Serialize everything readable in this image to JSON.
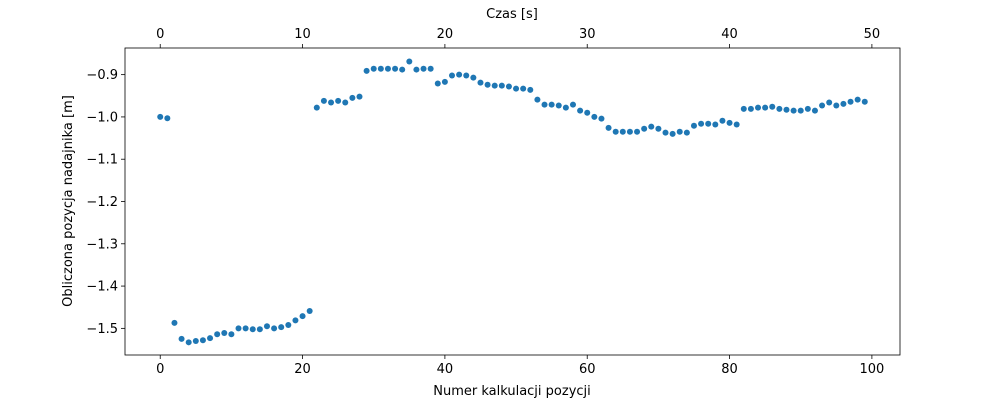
{
  "chart_data": {
    "type": "scatter",
    "xlabel": "Numer kalkulacji pozycji",
    "ylabel": "Obliczona pozycja nadajnika [m]",
    "x2label": "Czas [s]",
    "color": "#1f77b4",
    "x": [
      0,
      1,
      2,
      3,
      4,
      5,
      6,
      7,
      8,
      9,
      10,
      11,
      12,
      13,
      14,
      15,
      16,
      17,
      18,
      19,
      20,
      21,
      22,
      23,
      24,
      25,
      26,
      27,
      28,
      29,
      30,
      31,
      32,
      33,
      34,
      35,
      36,
      37,
      38,
      39,
      40,
      41,
      42,
      43,
      44,
      45,
      46,
      47,
      48,
      49,
      50,
      51,
      52,
      53,
      54,
      55,
      56,
      57,
      58,
      59,
      60,
      61,
      62,
      63,
      64,
      65,
      66,
      67,
      68,
      69,
      70,
      71,
      72,
      73,
      74,
      75,
      76,
      77,
      78,
      79,
      80,
      81,
      82,
      83,
      84,
      85,
      86,
      87,
      88,
      89,
      90,
      91,
      92,
      93,
      94,
      95,
      96,
      97,
      98,
      99
    ],
    "values": [
      -1.0,
      -1.003,
      -1.487,
      -1.525,
      -1.533,
      -1.53,
      -1.528,
      -1.523,
      -1.514,
      -1.511,
      -1.514,
      -1.5,
      -1.5,
      -1.502,
      -1.502,
      -1.495,
      -1.5,
      -1.497,
      -1.492,
      -1.481,
      -1.471,
      -1.459,
      -0.978,
      -0.962,
      -0.966,
      -0.962,
      -0.966,
      -0.955,
      -0.952,
      -0.891,
      -0.886,
      -0.886,
      -0.886,
      -0.886,
      -0.888,
      -0.869,
      -0.888,
      -0.886,
      -0.886,
      -0.921,
      -0.917,
      -0.902,
      -0.9,
      -0.902,
      -0.907,
      -0.919,
      -0.924,
      -0.926,
      -0.926,
      -0.928,
      -0.933,
      -0.933,
      -0.936,
      -0.959,
      -0.971,
      -0.971,
      -0.973,
      -0.978,
      -0.971,
      -0.985,
      -0.99,
      -1.0,
      -1.004,
      -1.026,
      -1.035,
      -1.035,
      -1.035,
      -1.035,
      -1.028,
      -1.023,
      -1.028,
      -1.037,
      -1.04,
      -1.035,
      -1.037,
      -1.021,
      -1.016,
      -1.016,
      -1.018,
      -1.009,
      -1.014,
      -1.018,
      -0.981,
      -0.981,
      -0.978,
      -0.978,
      -0.976,
      -0.981,
      -0.983,
      -0.985,
      -0.985,
      -0.981,
      -0.985,
      -0.973,
      -0.966,
      -0.973,
      -0.969,
      -0.964,
      -0.959,
      -0.964
    ],
    "xlim": [
      -4.95,
      103.95
    ],
    "xticks": [
      0,
      20,
      40,
      60,
      80,
      100
    ],
    "x2lim": [
      -2.475,
      51.975
    ],
    "x2ticks": [
      0,
      10,
      20,
      30,
      40,
      50
    ],
    "ylim": [
      -1.563,
      -0.837
    ],
    "yticks": [
      {
        "value": -1.5,
        "label": "−1.5"
      },
      {
        "value": -1.4,
        "label": "−1.4"
      },
      {
        "value": -1.3,
        "label": "−1.3"
      },
      {
        "value": -1.2,
        "label": "−1.2"
      },
      {
        "value": -1.1,
        "label": "−1.1"
      },
      {
        "value": -1.0,
        "label": "−1.0"
      },
      {
        "value": -0.9,
        "label": "−0.9"
      }
    ]
  }
}
